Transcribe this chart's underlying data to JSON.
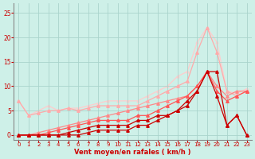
{
  "x": [
    0,
    1,
    2,
    3,
    4,
    5,
    6,
    7,
    8,
    9,
    10,
    11,
    12,
    13,
    14,
    15,
    16,
    17,
    18,
    19,
    20,
    21,
    22,
    23
  ],
  "series": [
    {
      "y": [
        0,
        0,
        0,
        0,
        0,
        0,
        0,
        0.5,
        1,
        1,
        1,
        1,
        2,
        2,
        3,
        4,
        5,
        6,
        9,
        13,
        8,
        2,
        4,
        0
      ],
      "color": "#cc0000",
      "lw": 0.9,
      "marker": "^",
      "ms": 2.5,
      "zorder": 5
    },
    {
      "y": [
        0,
        0,
        0,
        0,
        0,
        0.5,
        1,
        1.5,
        2,
        2,
        2,
        2,
        3,
        3,
        4,
        4,
        5,
        7,
        9,
        13,
        13,
        2,
        4,
        0
      ],
      "color": "#cc0000",
      "lw": 0.9,
      "marker": "^",
      "ms": 2.5,
      "zorder": 5
    },
    {
      "y": [
        0,
        0,
        0,
        0.5,
        1,
        1.5,
        2,
        2.5,
        3,
        3,
        3,
        3,
        4,
        4,
        5,
        6,
        7,
        8,
        10,
        13,
        9,
        7,
        8,
        9
      ],
      "color": "#ff5555",
      "lw": 0.9,
      "marker": "^",
      "ms": 2.5,
      "zorder": 4
    },
    {
      "y": [
        0,
        0,
        0.5,
        1,
        1.5,
        2,
        2.5,
        3,
        3.5,
        4,
        4.5,
        5,
        5.5,
        6,
        6.5,
        7,
        7.5,
        8,
        10,
        13,
        10,
        8,
        9,
        9
      ],
      "color": "#ff8888",
      "lw": 0.9,
      "marker": "^",
      "ms": 2.5,
      "zorder": 3
    },
    {
      "y": [
        7,
        4,
        4.5,
        5,
        5,
        5.5,
        5,
        5.5,
        6,
        6,
        6,
        6,
        6,
        7,
        8,
        9,
        10,
        11,
        17,
        22,
        17,
        9,
        8,
        9
      ],
      "color": "#ffaaaa",
      "lw": 0.9,
      "marker": "^",
      "ms": 2.5,
      "zorder": 2
    },
    {
      "y": [
        7,
        4,
        5,
        6,
        5,
        5.5,
        5.5,
        6,
        6.5,
        7,
        7,
        7,
        7,
        8,
        9,
        10,
        12,
        13,
        19,
        22,
        19,
        9,
        8.5,
        9.5
      ],
      "color": "#ffcccc",
      "lw": 0.9,
      "marker": "^",
      "ms": 2.0,
      "zorder": 1
    }
  ],
  "xlim": [
    -0.5,
    23.5
  ],
  "ylim": [
    -1,
    27
  ],
  "yticks": [
    0,
    5,
    10,
    15,
    20,
    25
  ],
  "xticks": [
    0,
    1,
    2,
    3,
    4,
    5,
    6,
    7,
    8,
    9,
    10,
    11,
    12,
    13,
    14,
    15,
    16,
    17,
    18,
    19,
    20,
    21,
    22,
    23
  ],
  "xlabel": "Vent moyen/en rafales ( km/h )",
  "bg_color": "#cef0e8",
  "grid_color": "#aad4cc",
  "axis_color": "#888888",
  "label_color": "#cc0000",
  "tick_color": "#cc0000"
}
